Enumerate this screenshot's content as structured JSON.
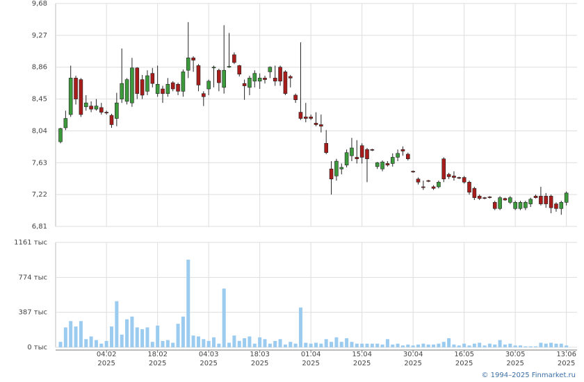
{
  "chart_data": {
    "type": "candlestick",
    "categories": [
      null,
      null,
      null,
      null,
      null,
      null,
      null,
      null,
      null,
      "04.02\n2025",
      null,
      null,
      null,
      null,
      null,
      null,
      null,
      null,
      null,
      "18.02\n2025",
      null,
      null,
      null,
      null,
      null,
      null,
      null,
      null,
      null,
      "04.03\n2025",
      null,
      null,
      null,
      null,
      null,
      null,
      null,
      null,
      null,
      "18.03\n2025",
      null,
      null,
      null,
      null,
      null,
      null,
      null,
      null,
      null,
      "01.04\n2025",
      null,
      null,
      null,
      null,
      null,
      null,
      null,
      null,
      null,
      "15.04\n2025",
      null,
      null,
      null,
      null,
      null,
      null,
      null,
      null,
      null,
      "30.04\n2025",
      null,
      null,
      null,
      null,
      null,
      null,
      null,
      null,
      null,
      "16.05\n2025",
      null,
      null,
      null,
      null,
      null,
      null,
      null,
      null,
      null,
      "30.05\n2025",
      null,
      null,
      null,
      null,
      null,
      null,
      null,
      null,
      null,
      "13.06\n2025"
    ],
    "open": [
      7.9,
      8.08,
      8.25,
      8.72,
      8.7,
      8.35,
      8.36,
      8.32,
      8.34,
      8.28,
      8.24,
      8.2,
      8.45,
      8.42,
      8.4,
      8.85,
      8.7,
      8.55,
      8.78,
      8.52,
      8.58,
      8.52,
      8.66,
      8.64,
      8.55,
      8.82,
      8.98,
      8.88,
      8.52,
      8.58,
      8.85,
      8.82,
      8.6,
      8.86,
      9.02,
      8.88,
      8.65,
      8.6,
      8.68,
      8.68,
      8.72,
      8.8,
      8.72,
      8.86,
      8.8,
      8.74,
      8.5,
      8.28,
      8.22,
      8.22,
      8.14,
      8.12,
      7.88,
      7.55,
      7.46,
      7.55,
      7.6,
      7.72,
      7.7,
      7.85,
      7.8,
      7.8,
      7.58,
      7.55,
      7.62,
      7.62,
      7.7,
      7.8,
      7.74,
      7.52,
      7.42,
      7.32,
      7.4,
      7.32,
      7.32,
      7.68,
      7.48,
      7.46,
      7.44,
      7.44,
      7.38,
      7.3,
      7.2,
      7.18,
      7.19,
      7.12,
      7.04,
      7.17,
      7.12,
      7.04,
      7.04,
      7.05,
      7.1,
      7.2,
      7.2,
      7.2,
      7.2,
      7.1,
      7.04,
      7.12
    ],
    "high": [
      8.08,
      8.3,
      8.88,
      8.75,
      8.72,
      8.5,
      8.42,
      8.45,
      8.4,
      8.3,
      8.26,
      8.53,
      9.1,
      8.72,
      8.98,
      8.86,
      8.76,
      8.82,
      8.85,
      8.88,
      8.62,
      8.72,
      8.68,
      8.66,
      8.83,
      9.44,
      9.0,
      8.9,
      8.55,
      8.7,
      8.88,
      8.84,
      9.4,
      9.3,
      9.05,
      8.89,
      8.7,
      8.75,
      8.82,
      8.78,
      8.75,
      8.87,
      8.88,
      8.88,
      8.82,
      8.76,
      8.52,
      9.18,
      8.4,
      8.25,
      8.28,
      8.25,
      8.05,
      7.65,
      7.68,
      7.62,
      7.8,
      7.95,
      7.92,
      7.88,
      7.82,
      7.81,
      7.64,
      7.66,
      7.65,
      7.75,
      7.8,
      7.84,
      7.76,
      7.53,
      7.44,
      7.4,
      7.41,
      7.34,
      7.4,
      7.7,
      7.5,
      7.52,
      7.45,
      7.46,
      7.4,
      7.32,
      7.22,
      7.19,
      7.2,
      7.14,
      7.2,
      7.18,
      7.2,
      7.14,
      7.14,
      7.14,
      7.18,
      7.22,
      7.32,
      7.24,
      7.22,
      7.12,
      7.14,
      7.26
    ],
    "low": [
      7.88,
      8.05,
      8.22,
      8.38,
      8.22,
      8.3,
      8.28,
      8.3,
      8.25,
      8.25,
      8.08,
      8.1,
      8.4,
      8.38,
      8.35,
      8.45,
      8.45,
      8.5,
      8.6,
      8.48,
      8.4,
      8.48,
      8.55,
      8.5,
      8.48,
      8.72,
      8.8,
      8.55,
      8.36,
      8.5,
      8.6,
      8.55,
      8.52,
      8.85,
      8.9,
      8.74,
      8.44,
      8.5,
      8.6,
      8.58,
      8.65,
      8.72,
      8.62,
      8.62,
      8.5,
      8.6,
      8.4,
      8.18,
      8.15,
      8.18,
      8.1,
      8.02,
      7.74,
      7.22,
      7.4,
      7.48,
      7.57,
      7.65,
      7.62,
      7.62,
      7.38,
      7.78,
      7.55,
      7.52,
      7.58,
      7.58,
      7.65,
      7.72,
      7.66,
      7.5,
      7.35,
      7.28,
      7.38,
      7.28,
      7.3,
      7.38,
      7.42,
      7.4,
      7.42,
      7.36,
      7.22,
      7.15,
      7.15,
      7.16,
      7.17,
      7.02,
      7.02,
      7.14,
      7.1,
      7.02,
      7.02,
      7.02,
      7.06,
      7.17,
      7.08,
      7.05,
      6.98,
      7.0,
      6.96,
      7.08
    ],
    "close": [
      8.07,
      8.2,
      8.72,
      8.45,
      8.25,
      8.4,
      8.32,
      8.36,
      8.28,
      8.27,
      8.12,
      8.4,
      8.65,
      8.7,
      8.85,
      8.52,
      8.5,
      8.75,
      8.65,
      8.64,
      8.52,
      8.64,
      8.58,
      8.55,
      8.8,
      8.98,
      8.95,
      8.63,
      8.48,
      8.68,
      8.86,
      8.66,
      8.82,
      8.87,
      8.92,
      8.77,
      8.62,
      8.72,
      8.78,
      8.72,
      8.7,
      8.86,
      8.68,
      8.68,
      8.52,
      8.72,
      8.44,
      8.2,
      8.2,
      8.2,
      8.12,
      8.1,
      7.76,
      7.42,
      7.65,
      7.57,
      7.76,
      7.82,
      7.68,
      7.7,
      7.68,
      7.79,
      7.63,
      7.64,
      7.6,
      7.7,
      7.75,
      7.78,
      7.68,
      7.51,
      7.38,
      7.31,
      7.39,
      7.3,
      7.38,
      7.42,
      7.45,
      7.44,
      7.43,
      7.38,
      7.25,
      7.18,
      7.17,
      7.17,
      7.18,
      7.04,
      7.18,
      7.15,
      7.18,
      7.12,
      7.12,
      7.12,
      7.16,
      7.18,
      7.1,
      7.1,
      7.05,
      7.04,
      7.12,
      7.24
    ],
    "volume": [
      60,
      220,
      290,
      230,
      290,
      90,
      120,
      80,
      40,
      70,
      230,
      510,
      140,
      310,
      340,
      220,
      200,
      220,
      60,
      240,
      70,
      80,
      50,
      260,
      340,
      970,
      130,
      120,
      90,
      70,
      110,
      40,
      650,
      50,
      130,
      70,
      100,
      120,
      40,
      110,
      90,
      40,
      70,
      90,
      30,
      60,
      40,
      440,
      50,
      40,
      50,
      40,
      90,
      60,
      110,
      60,
      100,
      60,
      40,
      40,
      40,
      40,
      40,
      30,
      90,
      30,
      40,
      20,
      30,
      20,
      30,
      40,
      30,
      30,
      40,
      60,
      100,
      30,
      20,
      40,
      20,
      40,
      50,
      20,
      40,
      30,
      80,
      30,
      40,
      20,
      20,
      10,
      10,
      10,
      50,
      40,
      50,
      40,
      40,
      20
    ],
    "ylim": [
      6.81,
      9.68
    ],
    "yticks": [
      {
        "value": 6.81,
        "label": "6,81"
      },
      {
        "value": 7.22,
        "label": "7,22"
      },
      {
        "value": 7.63,
        "label": "7,63"
      },
      {
        "value": 8.04,
        "label": "8,04"
      },
      {
        "value": 8.45,
        "label": "8,45"
      },
      {
        "value": 8.86,
        "label": "8,86"
      },
      {
        "value": 9.27,
        "label": "9,27"
      },
      {
        "value": 9.68,
        "label": "9,68"
      }
    ],
    "y2lim": [
      0,
      1161
    ],
    "y2ticks": [
      {
        "value": 0,
        "label": "0 тыс"
      },
      {
        "value": 387,
        "label": "387 тыс"
      },
      {
        "value": 774,
        "label": "774 тыс"
      },
      {
        "value": 1161,
        "label": "1161 тыс"
      }
    ],
    "up_color": "#3c9a3c",
    "down_color": "#a81c1c",
    "volume_color": "#9ccbf0",
    "grid": true,
    "credit": "© 1994–2025 Finmarket.ru"
  }
}
